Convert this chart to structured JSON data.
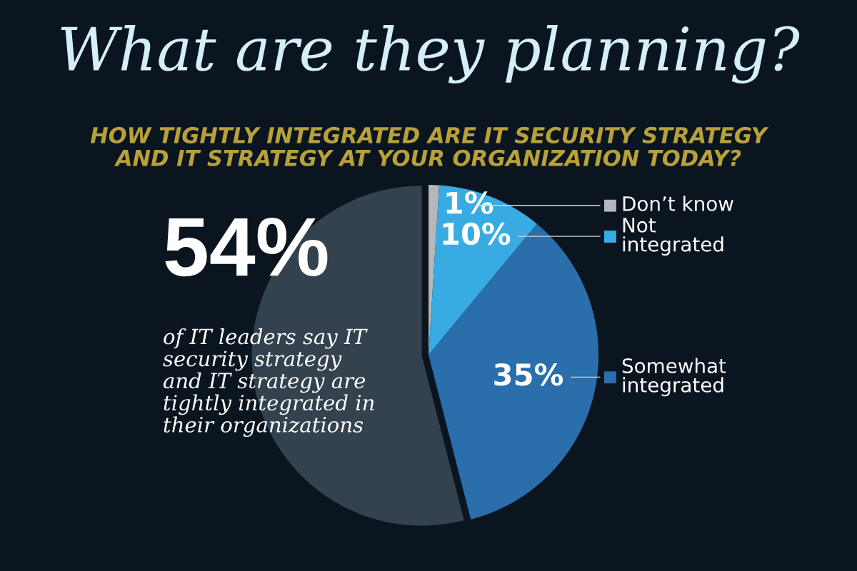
{
  "chart_data": {
    "type": "pie",
    "title": "What are they planning?",
    "subtitle": "HOW TIGHTLY INTEGRATED ARE IT SECURITY STRATEGY\nAND IT STRATEGY AT YOUR ORGANIZATION TODAY?",
    "categories": [
      "Don’t know",
      "Not\nintegrated",
      "Somewhat\nintegrated",
      null
    ],
    "values": [
      1,
      10,
      35,
      54
    ],
    "colors": [
      "#b4b8bc",
      "#38ace2",
      "#2a6eab",
      "#34424f"
    ],
    "legend": "right",
    "value_labels": [
      "1%",
      "10%",
      "35%",
      "54%"
    ],
    "annotations": [
      "of IT leaders say IT\nsecurity strategy\nand IT strategy are\ntightly integrated in\ntheir organizations"
    ]
  }
}
